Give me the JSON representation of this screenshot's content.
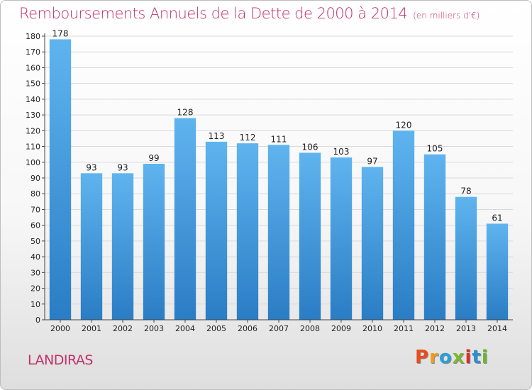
{
  "chart_data": {
    "type": "bar",
    "title": "Remboursements Annuels de la Dette de 2000 à 2014",
    "subtitle": "(en milliers d'€)",
    "categories": [
      "2000",
      "2001",
      "2002",
      "2003",
      "2004",
      "2005",
      "2006",
      "2007",
      "2008",
      "2009",
      "2010",
      "2011",
      "2012",
      "2013",
      "2014"
    ],
    "values": [
      178,
      93,
      93,
      99,
      128,
      113,
      112,
      111,
      106,
      103,
      97,
      120,
      105,
      78,
      61
    ],
    "ylim": [
      0,
      180
    ],
    "ytick_step": 10,
    "grid": true,
    "bar_color_top": "#5fb4ef",
    "bar_color_bottom": "#2a7dc4"
  },
  "footer": {
    "city": "LANDIRAS",
    "logo_text": "Proxiti",
    "logo_colors": [
      "#e84c1c",
      "#f29a1e",
      "#2aa0d8",
      "#7cb82f",
      "#d8302a",
      "#2a8fd0",
      "#6cb52c"
    ]
  }
}
